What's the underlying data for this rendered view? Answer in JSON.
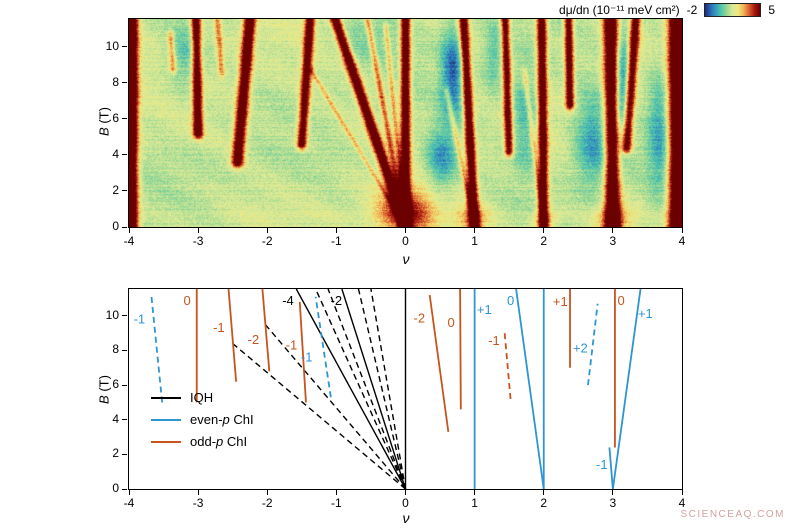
{
  "watermark": "SCIENCEAQ.COM",
  "palette": {
    "black": "#000000",
    "blue": "#2e95d3",
    "orange": "#c8541c",
    "frame": "#000000",
    "watermark_color": "#d4a0a0"
  },
  "colorbar": {
    "label": "dμ/dn (10⁻¹¹ meV cm²)",
    "min_label": "-2",
    "max_label": "5",
    "stops": [
      [
        0.0,
        "#1f2a7a"
      ],
      [
        0.14,
        "#2e7fc2"
      ],
      [
        0.28,
        "#49c2ae"
      ],
      [
        0.42,
        "#a9dc90"
      ],
      [
        0.5,
        "#d8e99c"
      ],
      [
        0.6,
        "#efe97d"
      ],
      [
        0.7,
        "#f2b256"
      ],
      [
        0.8,
        "#d9602f"
      ],
      [
        0.9,
        "#a81710"
      ],
      [
        1.0,
        "#6b0000"
      ]
    ]
  },
  "axes": {
    "xlabel": "ν",
    "ylabel_italic": "B",
    "ylabel_rest": " (T)",
    "xlim": [
      -4,
      4
    ],
    "ylim": [
      0,
      11.55
    ],
    "xticks": [
      -4,
      -3,
      -2,
      -1,
      0,
      1,
      2,
      3,
      4
    ],
    "yticks": [
      0,
      2,
      4,
      6,
      8,
      10
    ]
  },
  "chart_data": [
    {
      "type": "heatmap",
      "xlabel": "ν",
      "ylabel": "B (T)",
      "xlim": [
        -4,
        4
      ],
      "ylim": [
        0,
        11.55
      ],
      "colorbar_label": "dμ/dn (10⁻¹¹ meV cm²)",
      "colorbar_range": [
        -2,
        5
      ],
      "background_level": 1.35,
      "ridges": [
        {
          "x0": -3.97,
          "b0": 0,
          "x1": -3.97,
          "b1": 11.55,
          "w": 0.07,
          "amp": 6.0
        },
        {
          "x0": -3.0,
          "b0": 5.2,
          "x1": -3.03,
          "b1": 11.55,
          "w": 0.05,
          "amp": 5.0
        },
        {
          "x0": -3.36,
          "b0": 8.8,
          "x1": -3.4,
          "b1": 10.6,
          "w": 0.035,
          "amp": 2.2
        },
        {
          "x0": -2.66,
          "b0": 8.6,
          "x1": -2.72,
          "b1": 11.55,
          "w": 0.035,
          "amp": 2.0
        },
        {
          "x0": -2.43,
          "b0": 3.6,
          "x1": -2.25,
          "b1": 11.55,
          "w": 0.06,
          "amp": 5.2
        },
        {
          "x0": -1.5,
          "b0": 4.6,
          "x1": -1.38,
          "b1": 11.55,
          "w": 0.05,
          "amp": 4.6
        },
        {
          "x0": 0,
          "b0": 0,
          "x1": -1.02,
          "b1": 11.55,
          "w": 0.055,
          "amp": 5.4
        },
        {
          "x0": 0,
          "b0": 0,
          "x1": -0.55,
          "b1": 11.55,
          "w": 0.033,
          "amp": 2.4
        },
        {
          "x0": 0,
          "b0": 0,
          "x1": -0.28,
          "b1": 11.0,
          "w": 0.028,
          "amp": 1.8
        },
        {
          "x0": 0,
          "b0": 0,
          "x1": -1.35,
          "b1": 8.6,
          "w": 0.028,
          "amp": 1.5
        },
        {
          "x0": 0,
          "b0": 0,
          "x1": 0,
          "b1": 11.55,
          "w": 0.05,
          "amp": 5.2
        },
        {
          "x0": 1.0,
          "b0": 0,
          "x1": 0.84,
          "b1": 11.55,
          "w": 0.05,
          "amp": 5.0
        },
        {
          "x0": 1.0,
          "b0": 0,
          "x1": 0.6,
          "b1": 7.5,
          "w": 0.03,
          "amp": 1.8
        },
        {
          "x0": 1.5,
          "b0": 4.2,
          "x1": 1.44,
          "b1": 11.55,
          "w": 0.045,
          "amp": 4.4
        },
        {
          "x0": 2.0,
          "b0": 0,
          "x1": 1.97,
          "b1": 11.55,
          "w": 0.05,
          "amp": 5.0
        },
        {
          "x0": 2.0,
          "b0": 0,
          "x1": 1.73,
          "b1": 8.5,
          "w": 0.028,
          "amp": 1.6
        },
        {
          "x0": 2.38,
          "b0": 6.8,
          "x1": 2.36,
          "b1": 11.55,
          "w": 0.045,
          "amp": 4.6
        },
        {
          "x0": 3.0,
          "b0": 0,
          "x1": 2.97,
          "b1": 11.55,
          "w": 0.075,
          "amp": 5.8
        },
        {
          "x0": 3.2,
          "b0": 4.4,
          "x1": 3.33,
          "b1": 11.55,
          "w": 0.05,
          "amp": 4.6
        },
        {
          "x0": 3.93,
          "b0": 0,
          "x1": 3.93,
          "b1": 11.55,
          "w": 0.09,
          "amp": 6.2
        }
      ],
      "spots": [
        {
          "x": 0,
          "b": 0.8,
          "rx": 0.42,
          "rb": 1.3,
          "amp": 3.2
        },
        {
          "x": 0.97,
          "b": 0.4,
          "rx": 0.25,
          "rb": 0.8,
          "amp": 1.8
        },
        {
          "x": 2.0,
          "b": 0.3,
          "rx": 0.2,
          "rb": 0.6,
          "amp": 1.4
        },
        {
          "x": 3.0,
          "b": 0.4,
          "rx": 0.28,
          "rb": 0.9,
          "amp": 1.8
        },
        {
          "x": 0.68,
          "b": 8.5,
          "rx": 0.16,
          "rb": 2.6,
          "amp": -2.6
        },
        {
          "x": 0.52,
          "b": 3.8,
          "rx": 0.22,
          "rb": 1.8,
          "amp": -2.0
        },
        {
          "x": 1.73,
          "b": 6.0,
          "rx": 0.22,
          "rb": 2.8,
          "amp": -1.6
        },
        {
          "x": 2.72,
          "b": 4.8,
          "rx": 0.28,
          "rb": 2.6,
          "amp": -2.0
        },
        {
          "x": 3.13,
          "b": 8.0,
          "rx": 0.12,
          "rb": 3.0,
          "amp": -2.4
        },
        {
          "x": 3.68,
          "b": 5.5,
          "rx": 0.18,
          "rb": 3.5,
          "amp": -1.8
        },
        {
          "x": -3.2,
          "b": 9.5,
          "rx": 0.25,
          "rb": 1.8,
          "amp": -1.3
        },
        {
          "x": -0.55,
          "b": 10.6,
          "rx": 0.5,
          "rb": 1.4,
          "amp": -0.8
        },
        {
          "x": 1.28,
          "b": 9.5,
          "rx": 0.14,
          "rb": 2.0,
          "amp": -1.2
        }
      ]
    },
    {
      "type": "line",
      "xlabel": "ν",
      "ylabel": "B (T)",
      "xlim": [
        -4,
        4
      ],
      "ylim": [
        0,
        11.55
      ],
      "legend": [
        {
          "pre": "IQH",
          "color": "black"
        },
        {
          "pre": "even-",
          "italic": "p",
          "post": " ChI",
          "color": "blue"
        },
        {
          "pre": "odd-",
          "italic": "p",
          "post": " ChI",
          "color": "orange"
        }
      ],
      "series": [
        {
          "name": "IQH",
          "color": "black",
          "style": "solid",
          "lines": [
            [
              [
                0,
                0
              ],
              [
                0,
                11.55
              ]
            ],
            [
              [
                0,
                0
              ],
              [
                -1.58,
                11.55
              ]
            ],
            [
              [
                0,
                0
              ],
              [
                -0.92,
                11.55
              ]
            ]
          ]
        },
        {
          "name": "IQH",
          "color": "black",
          "style": "dashed",
          "lines": [
            [
              [
                0,
                0
              ],
              [
                -2.5,
                8.4
              ]
            ],
            [
              [
                0,
                0
              ],
              [
                -2.05,
                9.6
              ]
            ],
            [
              [
                0,
                0
              ],
              [
                -1.3,
                11.55
              ]
            ],
            [
              [
                0,
                0
              ],
              [
                -1.12,
                11.55
              ]
            ],
            [
              [
                0,
                0
              ],
              [
                -0.68,
                11.55
              ]
            ],
            [
              [
                0,
                0
              ],
              [
                -0.5,
                11.55
              ]
            ]
          ]
        },
        {
          "name": "even-p ChI",
          "color": "blue",
          "style": "solid",
          "lines": [
            [
              [
                1,
                0
              ],
              [
                1,
                11.55
              ]
            ],
            [
              [
                2,
                0
              ],
              [
                2,
                11.55
              ]
            ],
            [
              [
                2,
                0
              ],
              [
                1.6,
                11.55
              ]
            ],
            [
              [
                3,
                0
              ],
              [
                3.4,
                11.55
              ]
            ],
            [
              [
                3,
                0
              ],
              [
                2.95,
                2.4
              ]
            ]
          ]
        },
        {
          "name": "even-p ChI",
          "color": "blue",
          "style": "dashed",
          "lines": [
            [
              [
                -3.52,
                5.0
              ],
              [
                -3.68,
                11.3
              ]
            ],
            [
              [
                -1.08,
                5.3
              ],
              [
                -1.3,
                11.1
              ]
            ],
            [
              [
                2.64,
                6.0
              ],
              [
                2.78,
                10.7
              ]
            ]
          ]
        },
        {
          "name": "odd-p ChI",
          "color": "orange",
          "style": "solid",
          "lines": [
            [
              [
                -3.02,
                5.0
              ],
              [
                -3.02,
                11.55
              ]
            ],
            [
              [
                -2.45,
                6.2
              ],
              [
                -2.56,
                11.55
              ]
            ],
            [
              [
                -1.97,
                6.8
              ],
              [
                -2.07,
                11.55
              ]
            ],
            [
              [
                -1.44,
                5.0
              ],
              [
                -1.53,
                10.8
              ]
            ],
            [
              [
                0.62,
                3.3
              ],
              [
                0.35,
                11.2
              ]
            ],
            [
              [
                0.8,
                4.6
              ],
              [
                0.79,
                11.55
              ]
            ],
            [
              [
                2.38,
                7.0
              ],
              [
                2.38,
                11.55
              ]
            ],
            [
              [
                3.03,
                2.4
              ],
              [
                3.03,
                11.55
              ]
            ]
          ]
        },
        {
          "name": "odd-p ChI",
          "color": "orange",
          "style": "dashed",
          "lines": [
            [
              [
                1.52,
                5.2
              ],
              [
                1.43,
                9.2
              ]
            ]
          ]
        }
      ],
      "labels": [
        {
          "text": "-1",
          "color": "blue",
          "x": -3.85,
          "b": 9.8
        },
        {
          "text": "0",
          "color": "orange",
          "x": -3.16,
          "b": 10.85
        },
        {
          "text": "-1",
          "color": "orange",
          "x": -2.7,
          "b": 9.3
        },
        {
          "text": "-2",
          "color": "orange",
          "x": -2.2,
          "b": 8.6
        },
        {
          "text": "-4",
          "color": "black",
          "x": -1.7,
          "b": 10.85
        },
        {
          "text": "-2",
          "color": "black",
          "x": -1.0,
          "b": 10.85
        },
        {
          "text": "-1",
          "color": "orange",
          "x": -1.65,
          "b": 8.3
        },
        {
          "text": "-1",
          "color": "blue",
          "x": -1.43,
          "b": 7.6
        },
        {
          "text": "-2",
          "color": "orange",
          "x": 0.2,
          "b": 9.85
        },
        {
          "text": "0",
          "color": "orange",
          "x": 0.66,
          "b": 9.6
        },
        {
          "text": "+1",
          "color": "blue",
          "x": 1.14,
          "b": 10.35
        },
        {
          "text": "-1",
          "color": "orange",
          "x": 1.28,
          "b": 8.55
        },
        {
          "text": "0",
          "color": "blue",
          "x": 1.52,
          "b": 10.85
        },
        {
          "text": "+1",
          "color": "orange",
          "x": 2.24,
          "b": 10.8
        },
        {
          "text": "+2",
          "color": "blue",
          "x": 2.53,
          "b": 8.1
        },
        {
          "text": "0",
          "color": "orange",
          "x": 3.12,
          "b": 10.85
        },
        {
          "text": "+1",
          "color": "blue",
          "x": 3.47,
          "b": 10.1
        },
        {
          "text": "-1",
          "color": "blue",
          "x": 2.84,
          "b": 1.4
        }
      ]
    }
  ]
}
